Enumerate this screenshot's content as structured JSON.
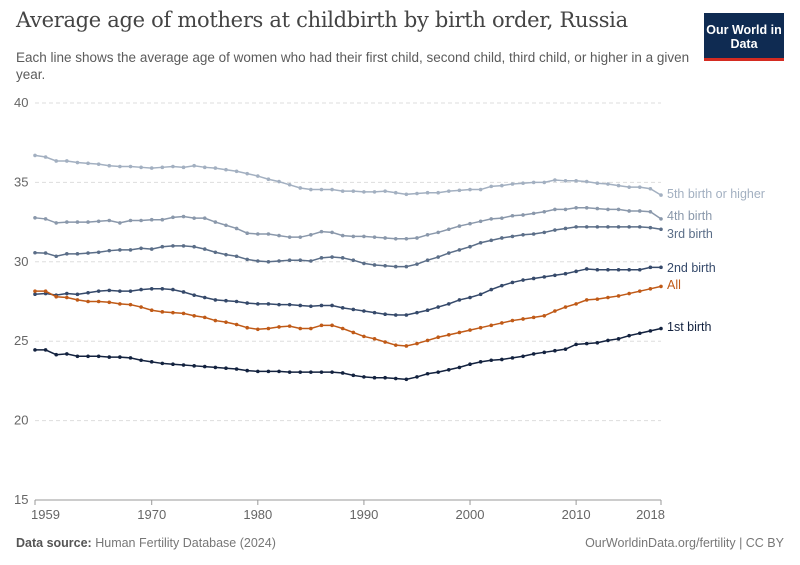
{
  "header": {
    "title": "Average age of mothers at childbirth by birth order, Russia",
    "subtitle": "Each line shows the average age of women who had their first child, second child, third child, or higher in a given year.",
    "logo": "Our World in Data"
  },
  "footer": {
    "source_label": "Data source:",
    "source": "Human Fertility Database (2024)",
    "right": "OurWorldinData.org/fertility | CC BY"
  },
  "chart_data": {
    "type": "line",
    "title": "Average age of mothers at childbirth by birth order, Russia",
    "xlabel": "",
    "ylabel": "",
    "xlim": [
      1959,
      2018
    ],
    "ylim": [
      15,
      40
    ],
    "yticks": [
      15,
      20,
      25,
      30,
      35,
      40
    ],
    "xticks": [
      1959,
      1970,
      1980,
      1990,
      2000,
      2010,
      2018
    ],
    "grid": "horizontal dashed",
    "legend": "line-end labels",
    "x": [
      1959,
      1960,
      1961,
      1962,
      1963,
      1964,
      1965,
      1966,
      1967,
      1968,
      1969,
      1970,
      1971,
      1972,
      1973,
      1974,
      1975,
      1976,
      1977,
      1978,
      1979,
      1980,
      1981,
      1982,
      1983,
      1984,
      1985,
      1986,
      1987,
      1988,
      1989,
      1990,
      1991,
      1992,
      1993,
      1994,
      1995,
      1996,
      1997,
      1998,
      1999,
      2000,
      2001,
      2002,
      2003,
      2004,
      2005,
      2006,
      2007,
      2008,
      2009,
      2010,
      2011,
      2012,
      2013,
      2014,
      2015,
      2016,
      2017,
      2018
    ],
    "series": [
      {
        "name": "5th birth or higher",
        "color": "#a3b0c1",
        "values": [
          36.7,
          36.6,
          36.35,
          36.35,
          36.25,
          36.2,
          36.15,
          36.05,
          36.0,
          36.0,
          35.95,
          35.9,
          35.95,
          36.0,
          35.95,
          36.05,
          35.95,
          35.9,
          35.8,
          35.7,
          35.55,
          35.4,
          35.2,
          35.05,
          34.85,
          34.65,
          34.55,
          34.55,
          34.55,
          34.45,
          34.45,
          34.4,
          34.4,
          34.45,
          34.35,
          34.25,
          34.3,
          34.35,
          34.35,
          34.45,
          34.5,
          34.55,
          34.55,
          34.75,
          34.8,
          34.9,
          34.95,
          35.0,
          35.0,
          35.15,
          35.1,
          35.1,
          35.05,
          34.95,
          34.9,
          34.8,
          34.7,
          34.7,
          34.6,
          34.2
        ]
      },
      {
        "name": "4th birth",
        "color": "#8a98ab",
        "values": [
          32.77,
          32.7,
          32.45,
          32.5,
          32.5,
          32.5,
          32.55,
          32.6,
          32.45,
          32.6,
          32.6,
          32.65,
          32.65,
          32.8,
          32.85,
          32.75,
          32.75,
          32.5,
          32.3,
          32.1,
          31.8,
          31.75,
          31.75,
          31.65,
          31.55,
          31.55,
          31.7,
          31.9,
          31.85,
          31.65,
          31.6,
          31.6,
          31.55,
          31.5,
          31.45,
          31.45,
          31.5,
          31.7,
          31.85,
          32.05,
          32.25,
          32.4,
          32.55,
          32.7,
          32.75,
          32.9,
          32.95,
          33.05,
          33.15,
          33.3,
          33.3,
          33.4,
          33.4,
          33.35,
          33.3,
          33.3,
          33.2,
          33.2,
          33.15,
          32.7
        ]
      },
      {
        "name": "3rd birth",
        "color": "#5b6e88",
        "values": [
          30.57,
          30.55,
          30.35,
          30.5,
          30.5,
          30.55,
          30.6,
          30.7,
          30.75,
          30.75,
          30.85,
          30.8,
          30.95,
          31.0,
          31.0,
          30.95,
          30.8,
          30.6,
          30.45,
          30.35,
          30.15,
          30.05,
          30.0,
          30.05,
          30.1,
          30.1,
          30.05,
          30.25,
          30.3,
          30.25,
          30.1,
          29.9,
          29.8,
          29.75,
          29.7,
          29.7,
          29.85,
          30.1,
          30.3,
          30.55,
          30.75,
          30.95,
          31.2,
          31.35,
          31.5,
          31.6,
          31.7,
          31.75,
          31.85,
          32.0,
          32.1,
          32.2,
          32.2,
          32.2,
          32.2,
          32.2,
          32.2,
          32.2,
          32.15,
          32.05
        ]
      },
      {
        "name": "2nd birth",
        "color": "#35496a",
        "values": [
          27.96,
          28.0,
          27.9,
          28.0,
          27.95,
          28.05,
          28.15,
          28.2,
          28.15,
          28.15,
          28.25,
          28.3,
          28.3,
          28.25,
          28.1,
          27.9,
          27.75,
          27.6,
          27.55,
          27.5,
          27.4,
          27.35,
          27.35,
          27.3,
          27.3,
          27.25,
          27.2,
          27.25,
          27.25,
          27.1,
          27.0,
          26.9,
          26.8,
          26.7,
          26.65,
          26.65,
          26.8,
          26.95,
          27.15,
          27.35,
          27.6,
          27.75,
          27.95,
          28.25,
          28.5,
          28.7,
          28.85,
          28.95,
          29.05,
          29.15,
          29.25,
          29.4,
          29.55,
          29.5,
          29.5,
          29.5,
          29.5,
          29.5,
          29.65,
          29.65
        ]
      },
      {
        "name": "All",
        "color": "#c05a17",
        "values": [
          28.15,
          28.15,
          27.8,
          27.75,
          27.6,
          27.5,
          27.5,
          27.45,
          27.35,
          27.3,
          27.15,
          26.95,
          26.85,
          26.8,
          26.75,
          26.6,
          26.5,
          26.3,
          26.2,
          26.05,
          25.85,
          25.75,
          25.8,
          25.9,
          25.95,
          25.8,
          25.8,
          26.0,
          26.0,
          25.8,
          25.55,
          25.3,
          25.15,
          24.95,
          24.75,
          24.7,
          24.85,
          25.05,
          25.25,
          25.4,
          25.55,
          25.7,
          25.85,
          26.0,
          26.15,
          26.3,
          26.4,
          26.5,
          26.6,
          26.9,
          27.15,
          27.35,
          27.6,
          27.65,
          27.75,
          27.85,
          28.0,
          28.15,
          28.3,
          28.45
        ]
      },
      {
        "name": "1st birth",
        "color": "#13223f",
        "values": [
          24.45,
          24.45,
          24.15,
          24.2,
          24.05,
          24.05,
          24.05,
          24.0,
          24.0,
          23.95,
          23.8,
          23.7,
          23.6,
          23.55,
          23.5,
          23.45,
          23.4,
          23.35,
          23.3,
          23.25,
          23.15,
          23.1,
          23.1,
          23.1,
          23.05,
          23.05,
          23.05,
          23.05,
          23.05,
          23.0,
          22.85,
          22.75,
          22.7,
          22.7,
          22.65,
          22.6,
          22.75,
          22.95,
          23.05,
          23.2,
          23.35,
          23.55,
          23.7,
          23.8,
          23.85,
          23.95,
          24.05,
          24.2,
          24.3,
          24.4,
          24.5,
          24.8,
          24.85,
          24.9,
          25.05,
          25.15,
          25.35,
          25.5,
          25.65,
          25.8
        ]
      }
    ]
  }
}
